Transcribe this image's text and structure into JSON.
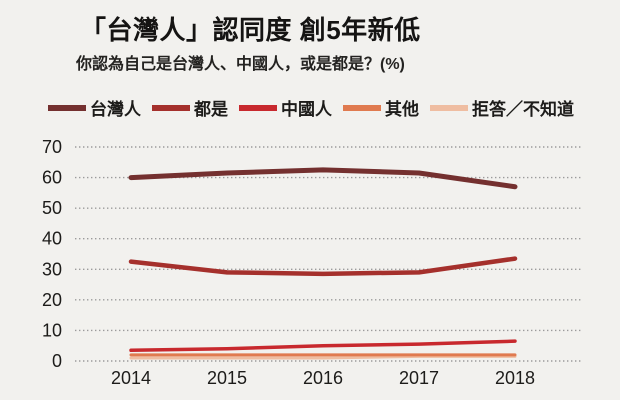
{
  "title": "「台灣人」認同度 創5年新低",
  "subtitle": "你認為自己是台灣人、中國人，或是都是？(%)",
  "colors": {
    "background": "#f2f1ee",
    "text": "#1d1c1a",
    "gridline": "#9b9b9b"
  },
  "chart_data": {
    "type": "line",
    "title": "「台灣人」認同度 創5年新低",
    "subtitle": "你認為自己是台灣人、中國人，或是都是？(%)",
    "categories": [
      "2014",
      "2015",
      "2016",
      "2017",
      "2018"
    ],
    "series": [
      {
        "name": "台灣人",
        "key": "taiwanese",
        "color": "#74302f",
        "values": [
          60,
          61.5,
          62.5,
          61.5,
          57
        ]
      },
      {
        "name": "都是",
        "key": "both",
        "color": "#a5302c",
        "values": [
          32.5,
          29,
          28.5,
          29,
          33.5
        ]
      },
      {
        "name": "中國人",
        "key": "chinese",
        "color": "#c8292e",
        "values": [
          3.5,
          4,
          5,
          5.5,
          6.5
        ]
      },
      {
        "name": "其他",
        "key": "other",
        "color": "#e07a4f",
        "values": [
          2,
          2,
          2,
          2,
          2
        ]
      },
      {
        "name": "拒答／不知道",
        "key": "refused-unknown",
        "color": "#efbda1",
        "values": [
          1,
          1,
          1,
          1.5,
          1.5
        ]
      }
    ],
    "ylabel": "",
    "xlabel": "",
    "ylim": [
      0,
      70
    ],
    "yticks": [
      70,
      60,
      50,
      40,
      30,
      20,
      10,
      0
    ],
    "grid": "horizontal-dotted",
    "legend_position": "top"
  }
}
